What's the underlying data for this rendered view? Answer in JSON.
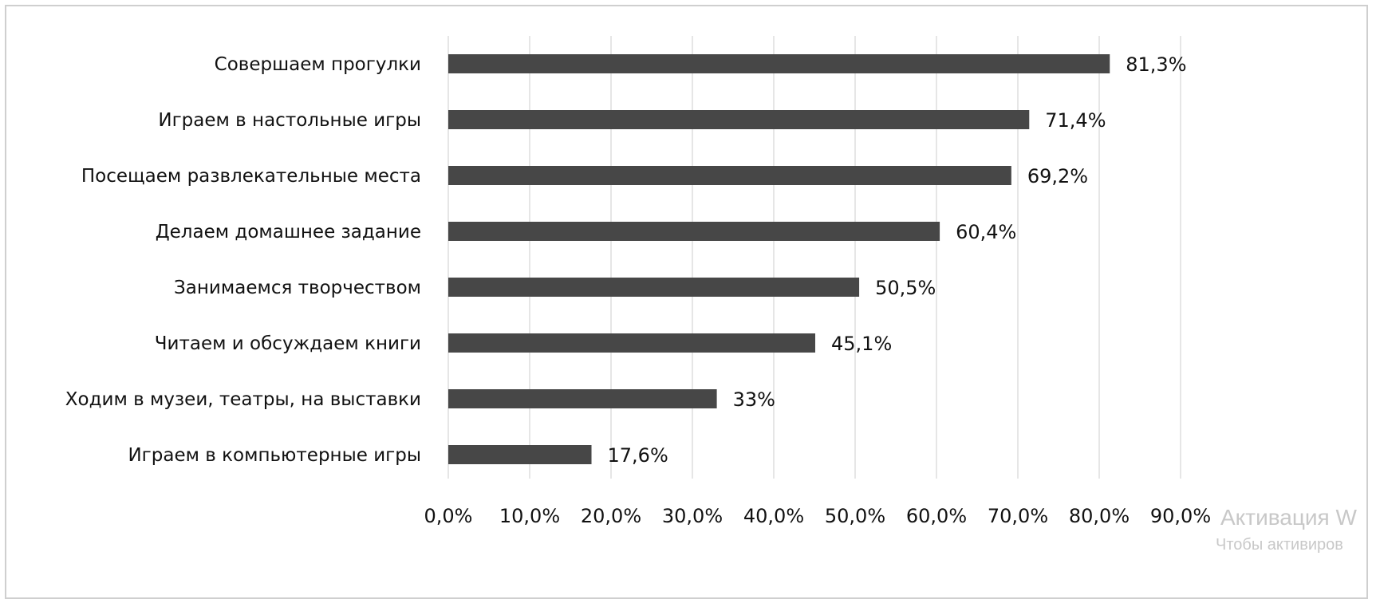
{
  "chart_data": {
    "type": "bar",
    "orientation": "horizontal",
    "categories": [
      "Совершаем  прогулки",
      "Играем в настольные игры",
      "Посещаем развлекательные  места",
      "Делаем домашнее  задание ",
      "Занимаемся  творчеством",
      "Читаем и обсуждаем книги",
      "Ходим в музеи, театры, на выставки",
      "Играем в компьютерные игры"
    ],
    "values": [
      81.3,
      71.4,
      69.2,
      60.4,
      50.5,
      45.1,
      33,
      17.6
    ],
    "data_labels": [
      "81,3%",
      "71,4%",
      "69,2%",
      "60,4%",
      "50,5%",
      "45,1%",
      "33%",
      "17,6%"
    ],
    "xlim": [
      0,
      90
    ],
    "x_ticks": [
      0,
      10,
      20,
      30,
      40,
      50,
      60,
      70,
      80,
      90
    ],
    "x_tick_labels": [
      "0,0%",
      "10,0%",
      "20,0%",
      "30,0%",
      "40,0%",
      "50,0%",
      "60,0%",
      "70,0%",
      "80,0%",
      "90,0%"
    ],
    "grid": "vertical",
    "bar_color": "#474747",
    "title": "",
    "xlabel": "",
    "ylabel": ""
  },
  "watermark": {
    "line1": "Активация W",
    "line2": "Чтобы активиров"
  }
}
